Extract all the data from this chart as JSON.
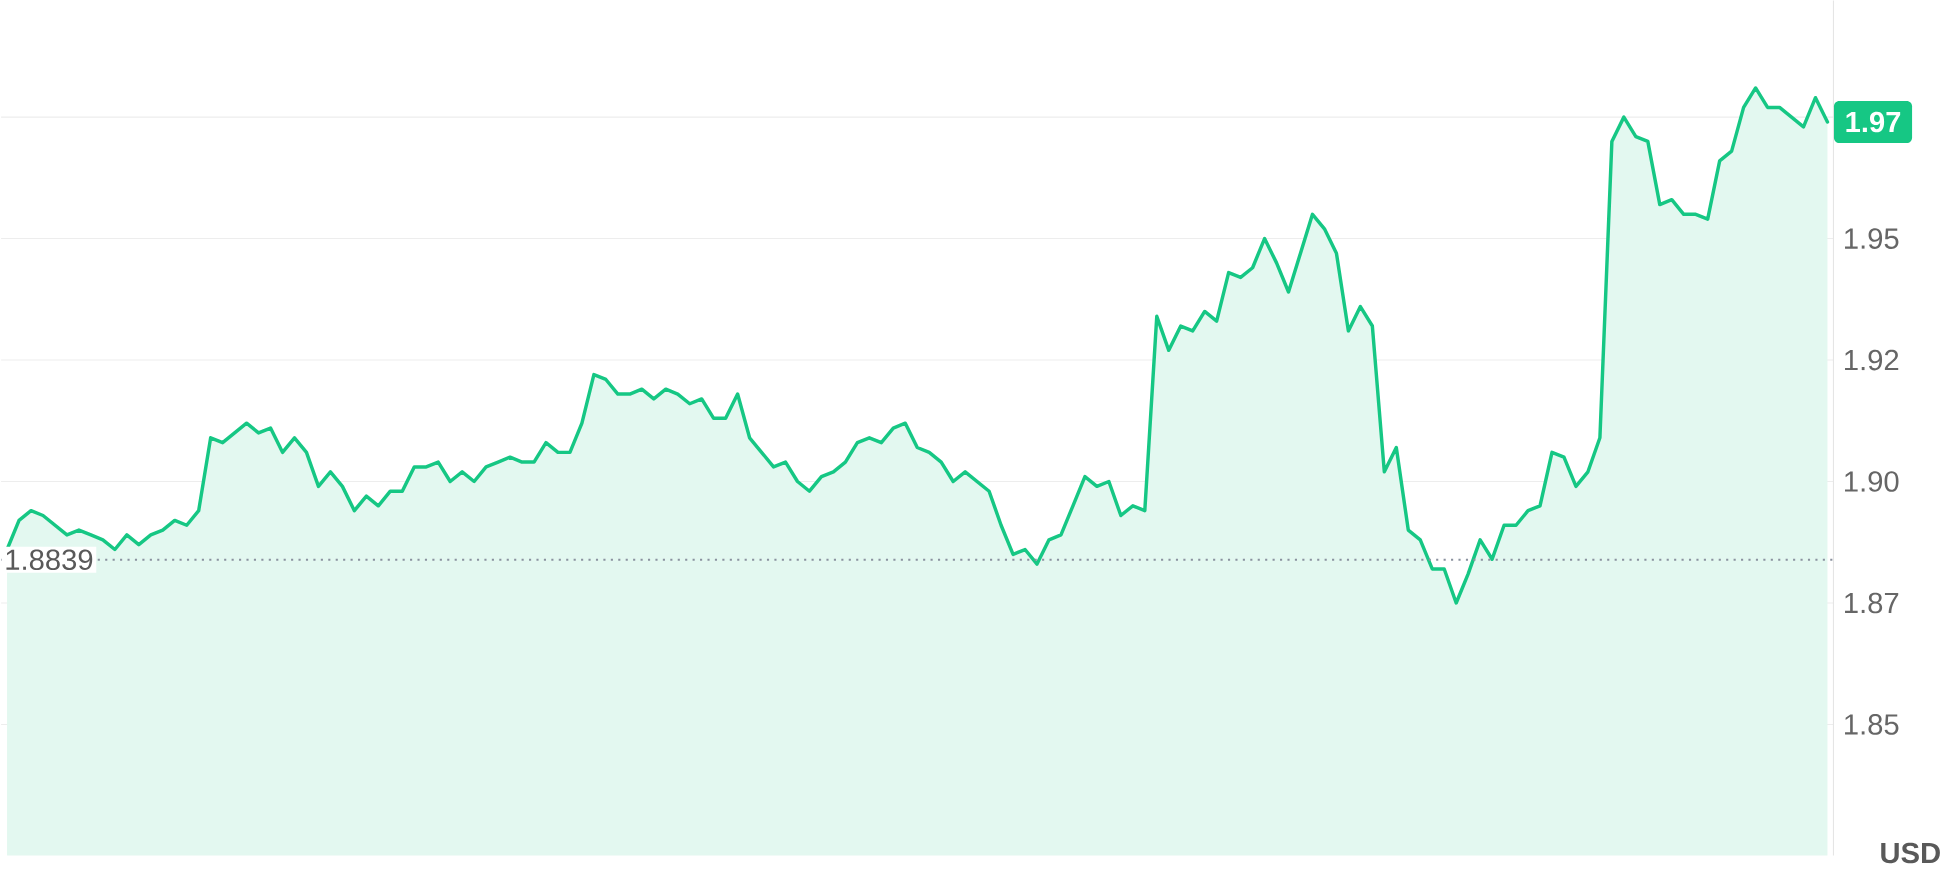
{
  "chart_data": {
    "type": "area",
    "categories": [
      null,
      null,
      null,
      null,
      null,
      null,
      null,
      null,
      null,
      null,
      null,
      null,
      null,
      null,
      null,
      null,
      null,
      null,
      null,
      null,
      null,
      null,
      null,
      null,
      null,
      null,
      null,
      null,
      null,
      null,
      null,
      null,
      null,
      null,
      null,
      null,
      null,
      null,
      null,
      null,
      null,
      null,
      null,
      null,
      null,
      null,
      null,
      null,
      null,
      null,
      null,
      null,
      null,
      null,
      null,
      null,
      null,
      null,
      null,
      null,
      null,
      null,
      null,
      null,
      null,
      null,
      null,
      null,
      null,
      null,
      null,
      null,
      null,
      null,
      null,
      null,
      null,
      null,
      null,
      null,
      null,
      null,
      null,
      null,
      null,
      null,
      null,
      null,
      null,
      null,
      null,
      null,
      null,
      null,
      null,
      null,
      null,
      null,
      null,
      null,
      null,
      null,
      null,
      null,
      null,
      null,
      null,
      null,
      null,
      null,
      null,
      null,
      null,
      null,
      null,
      null,
      null,
      null,
      null,
      null,
      null,
      null,
      null,
      null,
      null,
      null,
      null,
      null,
      null,
      null,
      null,
      null,
      null,
      null,
      null,
      null,
      null,
      null,
      null,
      null,
      null,
      null,
      null,
      null,
      null,
      null,
      null,
      null,
      null,
      null,
      null,
      null,
      null
    ],
    "values": [
      1.886,
      1.892,
      1.894,
      1.893,
      1.891,
      1.889,
      1.89,
      1.889,
      1.888,
      1.886,
      1.889,
      1.887,
      1.889,
      1.89,
      1.892,
      1.891,
      1.894,
      1.909,
      1.908,
      1.91,
      1.912,
      1.91,
      1.911,
      1.906,
      1.909,
      1.906,
      1.899,
      1.902,
      1.899,
      1.894,
      1.897,
      1.895,
      1.898,
      1.898,
      1.903,
      1.903,
      1.904,
      1.9,
      1.902,
      1.9,
      1.903,
      1.904,
      1.905,
      1.904,
      1.904,
      1.908,
      1.906,
      1.906,
      1.912,
      1.922,
      1.921,
      1.918,
      1.918,
      1.919,
      1.917,
      1.919,
      1.918,
      1.916,
      1.917,
      1.913,
      1.913,
      1.918,
      1.909,
      1.906,
      1.903,
      1.904,
      1.9,
      1.898,
      1.901,
      1.902,
      1.904,
      1.908,
      1.909,
      1.908,
      1.911,
      1.912,
      1.907,
      1.906,
      1.904,
      1.9,
      1.902,
      1.9,
      1.898,
      1.891,
      1.885,
      1.886,
      1.883,
      1.888,
      1.889,
      1.895,
      1.901,
      1.899,
      1.9,
      1.893,
      1.895,
      1.894,
      1.934,
      1.927,
      1.932,
      1.931,
      1.935,
      1.933,
      1.943,
      1.942,
      1.944,
      1.95,
      1.945,
      1.939,
      1.947,
      1.955,
      1.952,
      1.947,
      1.931,
      1.936,
      1.932,
      1.902,
      1.907,
      1.89,
      1.888,
      1.882,
      1.882,
      1.875,
      1.881,
      1.888,
      1.884,
      1.891,
      1.891,
      1.894,
      1.895,
      1.906,
      1.905,
      1.899,
      1.902,
      1.909,
      1.97,
      1.975,
      1.971,
      1.97,
      1.957,
      1.958,
      1.955,
      1.955,
      1.954,
      1.966,
      1.968,
      1.977,
      1.981,
      1.977,
      1.977,
      1.975,
      1.973,
      1.979,
      1.974
    ],
    "color": "#16c784",
    "ylim": [
      1.823,
      1.999
    ],
    "yticks": [
      {
        "value": 1.85,
        "label": "1.85"
      },
      {
        "value": 1.875,
        "label": "1.87"
      },
      {
        "value": 1.9,
        "label": "1.90"
      },
      {
        "value": 1.925,
        "label": "1.92"
      },
      {
        "value": 1.95,
        "label": "1.95"
      },
      {
        "value": 1.975,
        "label": null
      }
    ],
    "ylabel": "USD",
    "grid": "y",
    "ref_lines": [
      {
        "axis": "y",
        "value": 1.8839,
        "label": "1.8839",
        "color": "#8a919e",
        "line_style": "dotted"
      }
    ],
    "annotations": [
      {
        "text": "1.97",
        "y": 1.974
      }
    ]
  }
}
